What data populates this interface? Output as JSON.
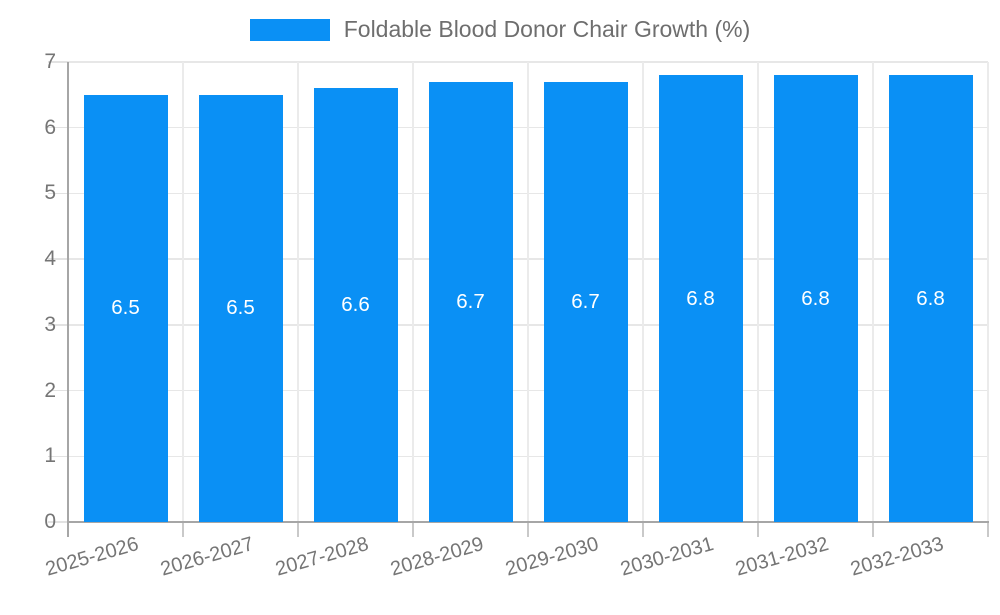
{
  "legend": {
    "label": "Foldable Blood Donor Chair Growth (%)"
  },
  "colors": {
    "bar": "#0a90f5",
    "value_label": "#ffffff",
    "axis_line": "#a6a6a6",
    "grid_line": "#e7e7e7",
    "tick_label": "#757575",
    "legend_text": "#6e6e6e",
    "background": "#ffffff"
  },
  "chart_data": {
    "type": "bar",
    "title": "Foldable Blood Donor Chair Growth (%)",
    "categories": [
      "2025-2026",
      "2026-2027",
      "2027-2028",
      "2028-2029",
      "2029-2030",
      "2030-2031",
      "2031-2032",
      "2032-2033"
    ],
    "values": [
      6.5,
      6.5,
      6.6,
      6.7,
      6.7,
      6.8,
      6.8,
      6.8
    ],
    "value_labels": [
      "6.5",
      "6.5",
      "6.6",
      "6.7",
      "6.7",
      "6.8",
      "6.8",
      "6.8"
    ],
    "xlabel": "",
    "ylabel": "",
    "ylim": [
      0,
      7
    ],
    "yticks": [
      "0",
      "1",
      "2",
      "3",
      "4",
      "5",
      "6",
      "7"
    ],
    "grid": true,
    "legend_position": "top-center",
    "bar_label_position": "inside-center",
    "x_label_rotation_deg": -16
  }
}
